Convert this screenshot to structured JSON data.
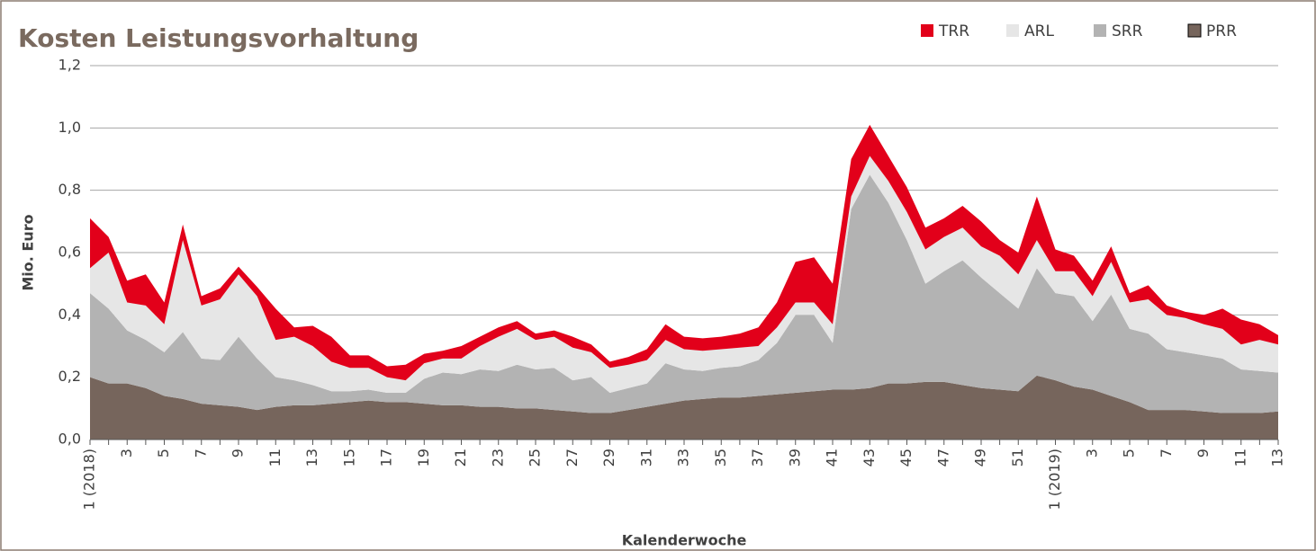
{
  "chart_data": {
    "type": "stacked_area",
    "title": "Kosten Leistungsvorhaltung",
    "y_label": "Mio. Euro",
    "x_label": "Kalenderwoche",
    "categories": [
      "1 (2018)",
      null,
      "3",
      null,
      "5",
      null,
      "7",
      null,
      "9",
      null,
      "11",
      null,
      "13",
      null,
      "15",
      null,
      "17",
      null,
      "19",
      null,
      "21",
      null,
      "23",
      null,
      "25",
      null,
      "27",
      null,
      "29",
      null,
      "31",
      null,
      "33",
      null,
      "35",
      null,
      "37",
      null,
      "39",
      null,
      "41",
      null,
      "43",
      null,
      "45",
      null,
      "47",
      null,
      "49",
      null,
      "51",
      null,
      "1 (2019)",
      null,
      "3",
      null,
      "5",
      null,
      "7",
      null,
      "9",
      null,
      "11",
      null,
      "13"
    ],
    "series": [
      {
        "name": "TRR",
        "color": "#e2001a",
        "values": [
          0.16,
          0.05,
          0.07,
          0.1,
          0.07,
          0.05,
          0.03,
          0.035,
          0.025,
          0.03,
          0.1,
          0.03,
          0.065,
          0.08,
          0.04,
          0.04,
          0.035,
          0.05,
          0.03,
          0.025,
          0.04,
          0.03,
          0.03,
          0.025,
          0.02,
          0.02,
          0.035,
          0.025,
          0.02,
          0.025,
          0.035,
          0.05,
          0.04,
          0.04,
          0.04,
          0.045,
          0.06,
          0.08,
          0.13,
          0.145,
          0.13,
          0.12,
          0.1,
          0.08,
          0.08,
          0.07,
          0.06,
          0.07,
          0.08,
          0.05,
          0.07,
          0.14,
          0.07,
          0.05,
          0.05,
          0.05,
          0.03,
          0.045,
          0.03,
          0.02,
          0.03,
          0.065,
          0.08,
          0.05,
          0.03
        ]
      },
      {
        "name": "ARL",
        "color": "#e6e6e6",
        "values": [
          0.08,
          0.18,
          0.09,
          0.11,
          0.09,
          0.295,
          0.17,
          0.195,
          0.2,
          0.2,
          0.12,
          0.14,
          0.125,
          0.095,
          0.075,
          0.07,
          0.05,
          0.04,
          0.05,
          0.045,
          0.05,
          0.075,
          0.11,
          0.115,
          0.095,
          0.1,
          0.105,
          0.08,
          0.08,
          0.075,
          0.075,
          0.075,
          0.065,
          0.065,
          0.06,
          0.06,
          0.045,
          0.05,
          0.04,
          0.04,
          0.06,
          0.04,
          0.06,
          0.07,
          0.09,
          0.11,
          0.11,
          0.105,
          0.1,
          0.12,
          0.11,
          0.09,
          0.07,
          0.08,
          0.08,
          0.105,
          0.085,
          0.11,
          0.11,
          0.11,
          0.1,
          0.095,
          0.08,
          0.1,
          0.09
        ]
      },
      {
        "name": "SRR",
        "color": "#b3b3b3",
        "values": [
          0.27,
          0.24,
          0.17,
          0.155,
          0.14,
          0.215,
          0.145,
          0.145,
          0.225,
          0.165,
          0.095,
          0.08,
          0.065,
          0.04,
          0.035,
          0.035,
          0.03,
          0.03,
          0.08,
          0.105,
          0.1,
          0.12,
          0.115,
          0.14,
          0.125,
          0.135,
          0.1,
          0.115,
          0.065,
          0.07,
          0.075,
          0.13,
          0.1,
          0.09,
          0.095,
          0.1,
          0.115,
          0.165,
          0.25,
          0.245,
          0.15,
          0.58,
          0.685,
          0.58,
          0.46,
          0.315,
          0.355,
          0.4,
          0.355,
          0.31,
          0.265,
          0.345,
          0.28,
          0.29,
          0.22,
          0.325,
          0.235,
          0.245,
          0.195,
          0.185,
          0.18,
          0.175,
          0.14,
          0.135,
          0.125
        ]
      },
      {
        "name": "PRR",
        "color": "#76655c",
        "values": [
          0.2,
          0.18,
          0.18,
          0.165,
          0.14,
          0.13,
          0.115,
          0.11,
          0.105,
          0.095,
          0.105,
          0.11,
          0.11,
          0.115,
          0.12,
          0.125,
          0.12,
          0.12,
          0.115,
          0.11,
          0.11,
          0.105,
          0.105,
          0.1,
          0.1,
          0.095,
          0.09,
          0.085,
          0.085,
          0.095,
          0.105,
          0.115,
          0.125,
          0.13,
          0.135,
          0.135,
          0.14,
          0.145,
          0.15,
          0.155,
          0.16,
          0.16,
          0.165,
          0.18,
          0.18,
          0.185,
          0.185,
          0.175,
          0.165,
          0.16,
          0.155,
          0.205,
          0.19,
          0.17,
          0.16,
          0.14,
          0.12,
          0.095,
          0.095,
          0.095,
          0.09,
          0.085,
          0.085,
          0.085,
          0.09
        ]
      }
    ],
    "ylim": [
      0,
      1.2
    ],
    "yticks": [
      {
        "value": 0,
        "label": "0,0"
      },
      {
        "value": 0.2,
        "label": "0,2"
      },
      {
        "value": 0.4,
        "label": "0,4"
      },
      {
        "value": 0.6,
        "label": "0,6"
      },
      {
        "value": 0.8,
        "label": "0,8"
      },
      {
        "value": 1.0,
        "label": "1,0"
      },
      {
        "value": 1.2,
        "label": "1,2"
      }
    ],
    "grid": true,
    "legend": "top-right"
  }
}
